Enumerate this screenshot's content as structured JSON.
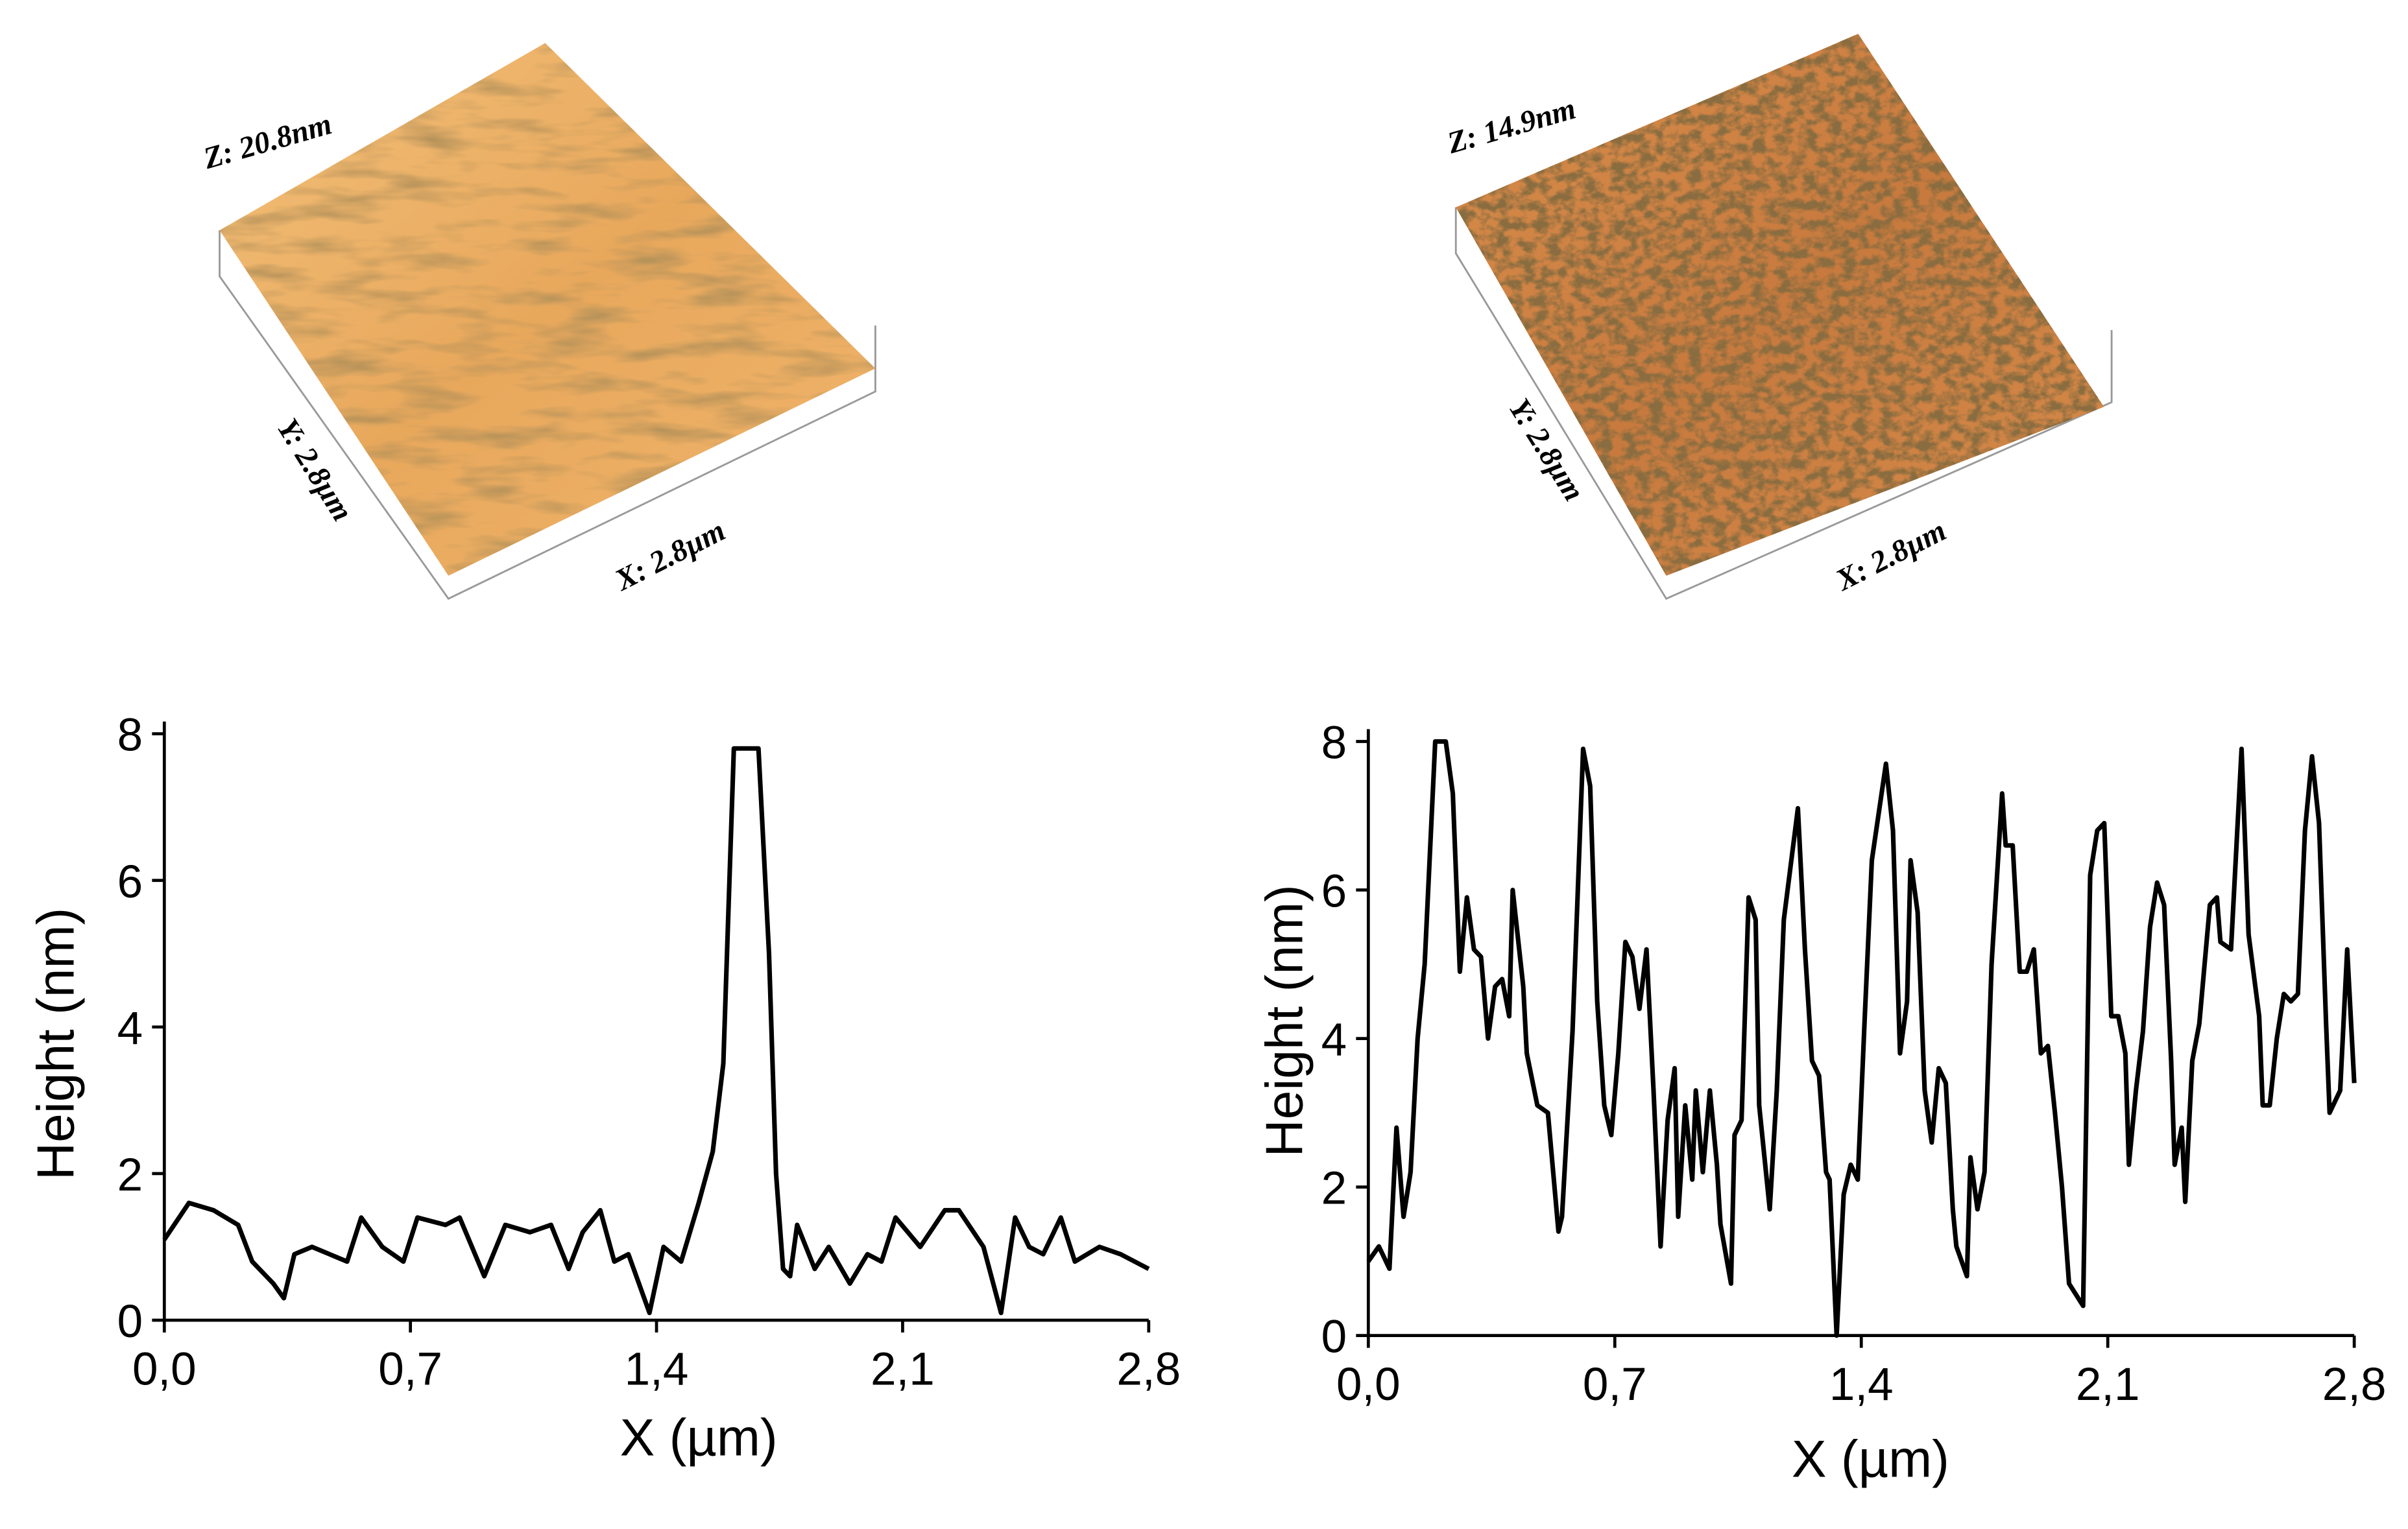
{
  "afm_images": [
    {
      "z_label": "Z: 20.8nm",
      "y_label": "Y: 2.8µm",
      "x_label": "X: 2.8µm"
    },
    {
      "z_label": "Z: 14.9nm",
      "y_label": "Y: 2.8µm",
      "x_label": "X: 2.8µm"
    }
  ],
  "chart_data": [
    {
      "type": "line",
      "xlabel": "X (µm)",
      "ylabel": "Height (nm)",
      "color": "#000000",
      "xlim": [
        0,
        2.8
      ],
      "ylim": [
        0,
        8
      ],
      "xticks": [
        {
          "value": 0,
          "label": "0,0"
        },
        {
          "value": 0.7,
          "label": "0,7"
        },
        {
          "value": 1.4,
          "label": "1,4"
        },
        {
          "value": 2.1,
          "label": "2,1"
        },
        {
          "value": 2.8,
          "label": "2,8"
        }
      ],
      "yticks": [
        0,
        2,
        4,
        6,
        8
      ],
      "x": [
        0,
        0.07,
        0.14,
        0.21,
        0.25,
        0.31,
        0.34,
        0.37,
        0.42,
        0.47,
        0.52,
        0.56,
        0.62,
        0.68,
        0.72,
        0.8,
        0.84,
        0.91,
        0.97,
        1.04,
        1.1,
        1.15,
        1.19,
        1.24,
        1.28,
        1.32,
        1.38,
        1.42,
        1.47,
        1.52,
        1.56,
        1.59,
        1.62,
        1.69,
        1.72,
        1.74,
        1.76,
        1.78,
        1.8,
        1.85,
        1.89,
        1.95,
        2.0,
        2.04,
        2.08,
        2.15,
        2.22,
        2.26,
        2.33,
        2.38,
        2.42,
        2.46,
        2.5,
        2.55,
        2.59,
        2.66,
        2.72,
        2.8
      ],
      "values": [
        1.1,
        1.6,
        1.5,
        1.3,
        0.8,
        0.5,
        0.3,
        0.9,
        1.0,
        0.9,
        0.8,
        1.4,
        1.0,
        0.8,
        1.4,
        1.3,
        1.4,
        0.6,
        1.3,
        1.2,
        1.3,
        0.7,
        1.2,
        1.5,
        0.8,
        0.9,
        0.1,
        1.0,
        0.8,
        1.6,
        2.3,
        3.5,
        7.8,
        7.8,
        5.0,
        2.0,
        0.7,
        0.6,
        1.3,
        0.7,
        1.0,
        0.5,
        0.9,
        0.8,
        1.4,
        1.0,
        1.5,
        1.5,
        1.0,
        0.1,
        1.4,
        1.0,
        0.9,
        1.4,
        0.8,
        1.0,
        0.9,
        0.7
      ]
    },
    {
      "type": "line",
      "xlabel": "X (µm)",
      "ylabel": "Height (nm)",
      "color": "#000000",
      "xlim": [
        0,
        2.8
      ],
      "ylim": [
        0,
        8
      ],
      "xticks": [
        {
          "value": 0,
          "label": "0,0"
        },
        {
          "value": 0.7,
          "label": "0,7"
        },
        {
          "value": 1.4,
          "label": "1,4"
        },
        {
          "value": 2.1,
          "label": "2,1"
        },
        {
          "value": 2.8,
          "label": "2,8"
        }
      ],
      "yticks": [
        0,
        2,
        4,
        6,
        8
      ],
      "x": [
        0,
        0.03,
        0.06,
        0.08,
        0.1,
        0.12,
        0.14,
        0.16,
        0.19,
        0.22,
        0.24,
        0.26,
        0.28,
        0.3,
        0.32,
        0.34,
        0.36,
        0.38,
        0.4,
        0.41,
        0.44,
        0.45,
        0.48,
        0.51,
        0.54,
        0.55,
        0.58,
        0.61,
        0.63,
        0.65,
        0.67,
        0.69,
        0.71,
        0.73,
        0.75,
        0.77,
        0.79,
        0.81,
        0.83,
        0.85,
        0.87,
        0.88,
        0.9,
        0.92,
        0.93,
        0.95,
        0.97,
        0.99,
        1.0,
        1.03,
        1.04,
        1.06,
        1.08,
        1.1,
        1.11,
        1.14,
        1.16,
        1.18,
        1.22,
        1.24,
        1.26,
        1.28,
        1.3,
        1.31,
        1.33,
        1.35,
        1.37,
        1.39,
        1.41,
        1.43,
        1.47,
        1.49,
        1.51,
        1.53,
        1.54,
        1.56,
        1.58,
        1.6,
        1.62,
        1.64,
        1.66,
        1.67,
        1.7,
        1.71,
        1.73,
        1.75,
        1.77,
        1.8,
        1.81,
        1.83,
        1.85,
        1.87,
        1.89,
        1.91,
        1.93,
        1.95,
        1.97,
        1.99,
        2.03,
        2.05,
        2.07,
        2.09,
        2.11,
        2.13,
        2.15,
        2.16,
        2.18,
        2.2,
        2.22,
        2.24,
        2.26,
        2.28,
        2.29,
        2.31,
        2.32,
        2.34,
        2.36,
        2.39,
        2.41,
        2.42,
        2.45,
        2.48,
        2.5,
        2.53,
        2.54,
        2.56,
        2.58,
        2.6,
        2.62,
        2.64,
        2.66,
        2.68,
        2.7,
        2.72,
        2.73,
        2.76,
        2.78,
        2.8
      ],
      "values": [
        1.0,
        1.2,
        0.9,
        2.8,
        1.6,
        2.2,
        4.0,
        5.0,
        8.0,
        8.0,
        7.3,
        4.9,
        5.9,
        5.2,
        5.1,
        4.0,
        4.7,
        4.8,
        4.3,
        6.0,
        4.7,
        3.8,
        3.1,
        3.0,
        1.4,
        1.6,
        4.1,
        7.9,
        7.4,
        4.5,
        3.1,
        2.7,
        3.8,
        5.3,
        5.1,
        4.4,
        5.2,
        3.3,
        1.2,
        2.9,
        3.6,
        1.6,
        3.1,
        2.1,
        3.3,
        2.2,
        3.3,
        2.3,
        1.5,
        0.7,
        2.7,
        2.9,
        5.9,
        5.6,
        3.1,
        1.7,
        3.3,
        5.6,
        7.1,
        5.2,
        3.7,
        3.5,
        2.2,
        2.1,
        0.0,
        1.9,
        2.3,
        2.1,
        4.3,
        6.4,
        7.7,
        6.8,
        3.8,
        4.5,
        6.4,
        5.7,
        3.3,
        2.6,
        3.6,
        3.4,
        1.7,
        1.2,
        0.8,
        2.4,
        1.7,
        2.2,
        5.0,
        7.3,
        6.6,
        6.6,
        4.9,
        4.9,
        5.2,
        3.8,
        3.9,
        3.0,
        2.0,
        0.7,
        0.4,
        6.2,
        6.8,
        6.9,
        4.3,
        4.3,
        3.8,
        2.3,
        3.3,
        4.1,
        5.5,
        6.1,
        5.8,
        3.7,
        2.3,
        2.8,
        1.8,
        3.7,
        4.2,
        5.8,
        5.9,
        5.3,
        5.2,
        7.9,
        5.4,
        4.3,
        3.1,
        3.1,
        4.0,
        4.6,
        4.5,
        4.6,
        6.8,
        7.8,
        6.9,
        4.2,
        3.0,
        3.3,
        5.2,
        3.4
      ]
    }
  ]
}
